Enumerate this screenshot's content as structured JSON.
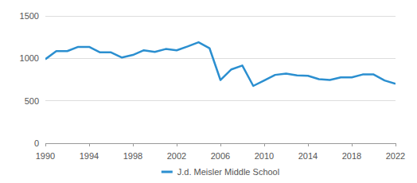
{
  "chart_data": {
    "type": "line",
    "x": [
      1990,
      1991,
      1992,
      1993,
      1994,
      1995,
      1996,
      1997,
      1998,
      1999,
      2000,
      2001,
      2002,
      2003,
      2004,
      2005,
      2006,
      2007,
      2008,
      2009,
      2010,
      2011,
      2012,
      2013,
      2014,
      2015,
      2016,
      2017,
      2018,
      2019,
      2020,
      2021,
      2022
    ],
    "series": [
      {
        "name": "J.d. Meisler Middle School",
        "color": "#2b8fd0",
        "values": [
          990,
          1085,
          1085,
          1135,
          1135,
          1070,
          1070,
          1010,
          1040,
          1095,
          1075,
          1110,
          1095,
          1140,
          1190,
          1120,
          745,
          870,
          915,
          675,
          740,
          805,
          820,
          800,
          795,
          755,
          745,
          775,
          775,
          810,
          810,
          740,
          700
        ]
      }
    ],
    "xlim": [
      1990,
      2022
    ],
    "xticks": [
      1990,
      1994,
      1998,
      2002,
      2006,
      2010,
      2014,
      2018,
      2022
    ],
    "ylim": [
      0,
      1500
    ],
    "yticks": [
      0,
      500,
      1000,
      1500
    ],
    "grid": true,
    "legend": "bottom"
  }
}
